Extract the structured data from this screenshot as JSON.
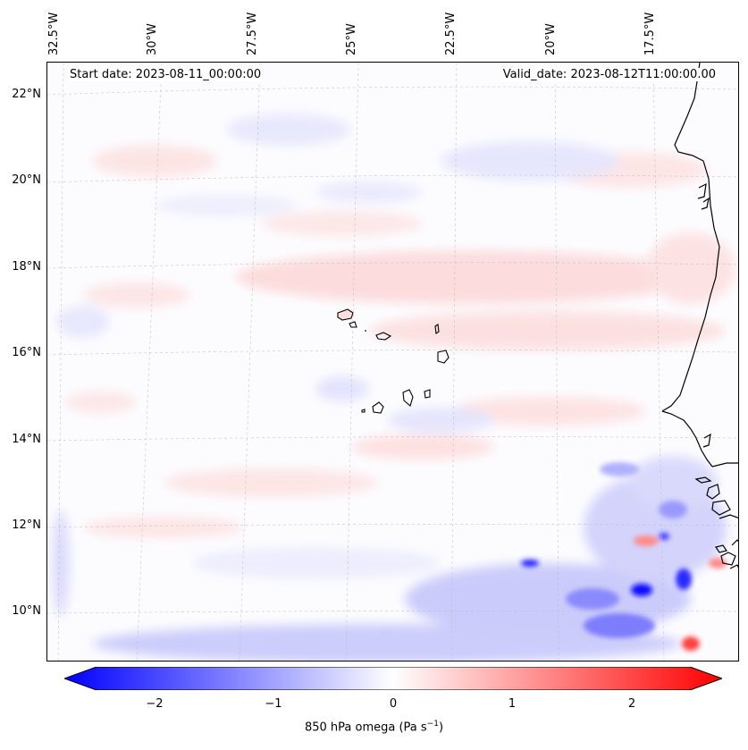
{
  "map": {
    "start_date": "Start date: 2023-08-11_00:00:00",
    "valid_date": "Valid_date: 2023-08-12T11:00:00.00",
    "lon_labels": [
      "32.5°W",
      "30°W",
      "27.5°W",
      "25°W",
      "22.5°W",
      "20°W",
      "17.5°W"
    ],
    "lat_labels": [
      "22°N",
      "20°N",
      "18°N",
      "16°N",
      "14°N",
      "12°N",
      "10°N"
    ],
    "colors": {
      "negative": "#0000ff",
      "zero": "#ffffff",
      "positive": "#ff0000",
      "coast": "#000000"
    }
  },
  "colorbar": {
    "ticks": [
      "−2",
      "−1",
      "0",
      "1",
      "2"
    ],
    "tick_values": [
      -2,
      -1,
      0,
      1,
      2
    ],
    "range": [
      -2.5,
      2.5
    ],
    "variable": "850 hPa omega (Pa s",
    "unit_exponent": "−1",
    "unit_close": ")"
  }
}
